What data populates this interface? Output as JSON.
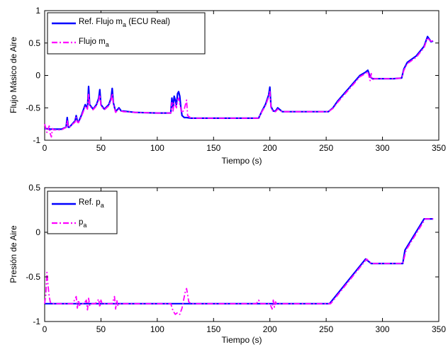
{
  "chart_data": [
    {
      "type": "line",
      "xlabel": "Tiempo (s)",
      "ylabel": "Flujo Másico de Aire",
      "xlim": [
        0,
        350
      ],
      "ylim": [
        -1,
        1
      ],
      "xticks": [
        "0",
        "50",
        "100",
        "150",
        "200",
        "250",
        "300",
        "350"
      ],
      "yticks": [
        "1",
        "0.5",
        "0",
        "-0.5",
        "-1"
      ],
      "grid": false,
      "legend_position": "top-left",
      "series": [
        {
          "name_main": "Ref. Flujo m",
          "name_sub": "a",
          "name_suffix": " (ECU Real)",
          "color": "#0000ff",
          "style": "solid",
          "x": [
            0,
            5,
            10,
            15,
            19,
            20,
            21,
            22,
            25,
            27,
            28,
            29,
            30,
            33,
            36,
            38,
            39,
            40,
            43,
            46,
            48,
            49,
            50,
            53,
            57,
            59,
            60,
            61,
            63,
            66,
            68,
            70,
            80,
            100,
            112,
            113,
            114,
            115,
            117,
            118,
            119,
            120,
            121,
            122,
            124,
            126,
            130,
            150,
            190,
            193,
            196,
            199,
            200,
            201,
            203,
            205,
            207,
            209,
            211,
            215,
            230,
            252,
            256,
            260,
            265,
            270,
            275,
            280,
            285,
            287,
            289,
            291,
            293,
            300,
            310,
            317,
            319,
            322,
            330,
            337,
            340,
            342,
            343,
            345
          ],
          "values": [
            -0.82,
            -0.83,
            -0.83,
            -0.83,
            -0.8,
            -0.65,
            -0.8,
            -0.8,
            -0.74,
            -0.7,
            -0.62,
            -0.7,
            -0.72,
            -0.6,
            -0.45,
            -0.5,
            -0.17,
            -0.45,
            -0.52,
            -0.45,
            -0.35,
            -0.22,
            -0.45,
            -0.52,
            -0.45,
            -0.35,
            -0.2,
            -0.42,
            -0.56,
            -0.5,
            -0.55,
            -0.55,
            -0.57,
            -0.58,
            -0.58,
            -0.35,
            -0.5,
            -0.32,
            -0.45,
            -0.28,
            -0.25,
            -0.32,
            -0.5,
            -0.62,
            -0.65,
            -0.65,
            -0.66,
            -0.66,
            -0.66,
            -0.55,
            -0.45,
            -0.3,
            -0.18,
            -0.48,
            -0.55,
            -0.55,
            -0.5,
            -0.53,
            -0.56,
            -0.56,
            -0.56,
            -0.56,
            -0.5,
            -0.4,
            -0.3,
            -0.2,
            -0.1,
            0.0,
            0.05,
            0.08,
            -0.02,
            -0.05,
            -0.05,
            -0.05,
            -0.05,
            -0.04,
            0.1,
            0.2,
            0.3,
            0.45,
            0.6,
            0.55,
            0.52,
            0.53
          ]
        },
        {
          "name_main": "Flujo m",
          "name_sub": "a",
          "name_suffix": "",
          "color": "#ff00ff",
          "style": "dashdot",
          "x": [
            0,
            2,
            4,
            5,
            6,
            7,
            8,
            10,
            15,
            19,
            20,
            21,
            22,
            25,
            27,
            28,
            29,
            30,
            33,
            36,
            38,
            39,
            40,
            43,
            46,
            48,
            49,
            50,
            53,
            57,
            59,
            60,
            61,
            63,
            66,
            68,
            70,
            80,
            100,
            112,
            113,
            114,
            115,
            117,
            118,
            119,
            120,
            122,
            124,
            125,
            126,
            127,
            130,
            150,
            190,
            193,
            196,
            199,
            200,
            201,
            203,
            205,
            207,
            209,
            211,
            215,
            230,
            252,
            256,
            260,
            265,
            270,
            275,
            280,
            285,
            287,
            289,
            290,
            291,
            293,
            300,
            310,
            317,
            319,
            322,
            330,
            337,
            340,
            342,
            343,
            345
          ],
          "values": [
            -0.75,
            -0.88,
            -0.78,
            -0.9,
            -0.95,
            -0.82,
            -0.84,
            -0.84,
            -0.84,
            -0.8,
            -0.7,
            -0.8,
            -0.8,
            -0.75,
            -0.72,
            -0.65,
            -0.72,
            -0.73,
            -0.62,
            -0.48,
            -0.52,
            -0.28,
            -0.47,
            -0.53,
            -0.47,
            -0.38,
            -0.3,
            -0.47,
            -0.53,
            -0.47,
            -0.38,
            -0.28,
            -0.44,
            -0.57,
            -0.52,
            -0.55,
            -0.56,
            -0.57,
            -0.58,
            -0.58,
            -0.42,
            -0.55,
            -0.42,
            -0.5,
            -0.38,
            -0.35,
            -0.45,
            -0.58,
            -0.52,
            -0.45,
            -0.38,
            -0.62,
            -0.66,
            -0.66,
            -0.66,
            -0.56,
            -0.47,
            -0.33,
            -0.25,
            -0.5,
            -0.56,
            -0.56,
            -0.52,
            -0.54,
            -0.56,
            -0.56,
            -0.56,
            -0.56,
            -0.51,
            -0.42,
            -0.32,
            -0.22,
            -0.12,
            -0.02,
            0.03,
            0.06,
            -0.08,
            0.03,
            -0.07,
            -0.05,
            -0.05,
            -0.05,
            -0.04,
            0.08,
            0.18,
            0.28,
            0.43,
            0.58,
            0.54,
            0.53,
            0.53
          ]
        }
      ]
    },
    {
      "type": "line",
      "xlabel": "Tiempo (s)",
      "ylabel": "Presión de Aire",
      "xlim": [
        0,
        350
      ],
      "ylim": [
        -1,
        0.5
      ],
      "xticks": [
        "0",
        "50",
        "100",
        "150",
        "200",
        "250",
        "300",
        "350"
      ],
      "yticks": [
        "0.5",
        "0",
        "-0.5",
        "-1"
      ],
      "grid": false,
      "legend_position": "top-left",
      "series": [
        {
          "name_main": "Ref. p",
          "name_sub": "a",
          "name_suffix": "",
          "color": "#0000ff",
          "style": "solid",
          "x": [
            0,
            253,
            285,
            290,
            318,
            320,
            337,
            345
          ],
          "values": [
            -0.8,
            -0.8,
            -0.3,
            -0.35,
            -0.35,
            -0.2,
            0.15,
            0.15
          ]
        },
        {
          "name_main": "p",
          "name_sub": "a",
          "name_suffix": "",
          "color": "#ff00ff",
          "style": "dashdot",
          "x": [
            0,
            1,
            2,
            3,
            4,
            5,
            6,
            8,
            10,
            15,
            20,
            25,
            28,
            29,
            30,
            31,
            32,
            35,
            37,
            38,
            39,
            40,
            41,
            45,
            48,
            49,
            50,
            51,
            55,
            60,
            62,
            63,
            64,
            65,
            66,
            70,
            80,
            100,
            110,
            112,
            114,
            116,
            118,
            120,
            122,
            124,
            125,
            126,
            127,
            128,
            130,
            150,
            180,
            188,
            190,
            192,
            195,
            200,
            202,
            203,
            204,
            205,
            206,
            208,
            220,
            250,
            254,
            286,
            290,
            318,
            321,
            338,
            345
          ],
          "values": [
            -0.8,
            -0.7,
            -0.45,
            -0.6,
            -0.72,
            -0.78,
            -0.8,
            -0.8,
            -0.8,
            -0.8,
            -0.8,
            -0.8,
            -0.72,
            -0.85,
            -0.76,
            -0.82,
            -0.8,
            -0.8,
            -0.76,
            -0.87,
            -0.74,
            -0.82,
            -0.8,
            -0.8,
            -0.75,
            -0.84,
            -0.76,
            -0.8,
            -0.8,
            -0.8,
            -0.72,
            -0.86,
            -0.76,
            -0.82,
            -0.8,
            -0.8,
            -0.8,
            -0.8,
            -0.8,
            -0.8,
            -0.88,
            -0.92,
            -0.9,
            -0.92,
            -0.85,
            -0.72,
            -0.66,
            -0.63,
            -0.7,
            -0.78,
            -0.8,
            -0.8,
            -0.8,
            -0.8,
            -0.76,
            -0.8,
            -0.8,
            -0.8,
            -0.86,
            -0.76,
            -0.84,
            -0.78,
            -0.8,
            -0.8,
            -0.8,
            -0.8,
            -0.8,
            -0.3,
            -0.35,
            -0.35,
            -0.2,
            0.15,
            0.15
          ]
        }
      ]
    }
  ]
}
